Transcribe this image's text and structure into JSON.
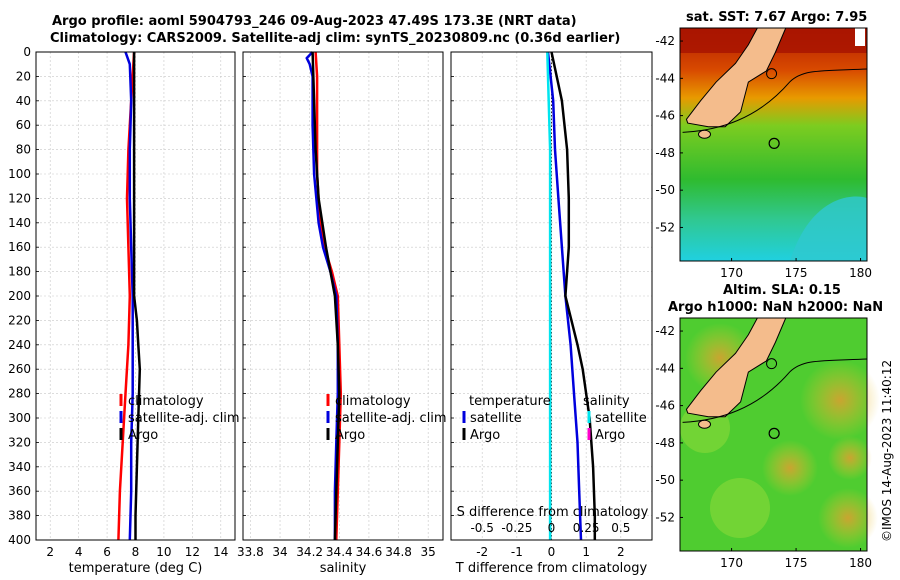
{
  "title": {
    "line1": "Argo profile: aoml 5904793_246 09-Aug-2023 47.49S 173.3E (NRT data)",
    "line2": "Climatology: CARS2009. Satellite-adj clim: synTS_20230809.nc (0.36d earlier)"
  },
  "map_top_title": "sat. SST: 7.67 Argo: 7.95",
  "map_bottom_title_1": "Altim. SLA: 0.15",
  "map_bottom_title_2": "Argo h1000: NaN h2000: NaN",
  "watermark": "©IMOS 14-Aug-2023 11:40:12",
  "colors": {
    "climatology": "#ff0000",
    "satellite": "#0000dd",
    "argo": "#000000",
    "tdiff_sat": "#0000dd",
    "sdiff_sat": "#00e5ee",
    "sdiff_argo": "#ff00cc"
  },
  "chart_data": [
    {
      "type": "line",
      "name": "temperature-panel",
      "xlabel": "temperature (deg C)",
      "ylabel": "",
      "xlim": [
        1,
        15
      ],
      "ylim": [
        400,
        0
      ],
      "xticks": [
        2,
        4,
        6,
        8,
        10,
        12,
        14
      ],
      "yticks": [
        0,
        20,
        40,
        60,
        80,
        100,
        120,
        140,
        160,
        180,
        200,
        220,
        240,
        260,
        280,
        300,
        320,
        340,
        360,
        380,
        400
      ],
      "legend": [
        "climatology",
        "satellite-adj. clim",
        "Argo"
      ],
      "series": [
        {
          "name": "climatology",
          "depth": [
            0,
            40,
            80,
            120,
            160,
            200,
            240,
            280,
            320,
            360,
            400
          ],
          "values": [
            7.9,
            7.7,
            7.5,
            7.4,
            7.5,
            7.6,
            7.5,
            7.3,
            7.1,
            6.9,
            6.8
          ]
        },
        {
          "name": "satellite-adj. clim",
          "depth": [
            0,
            10,
            40,
            80,
            120,
            160,
            200,
            240,
            280,
            320,
            360,
            400
          ],
          "values": [
            7.3,
            7.6,
            7.7,
            7.6,
            7.6,
            7.7,
            7.8,
            7.8,
            7.8,
            7.7,
            7.7,
            7.6
          ]
        },
        {
          "name": "Argo",
          "depth": [
            0,
            40,
            80,
            120,
            160,
            200,
            220,
            240,
            260,
            300,
            340,
            380,
            400
          ],
          "values": [
            7.9,
            7.9,
            7.9,
            7.9,
            7.9,
            7.9,
            8.1,
            8.2,
            8.3,
            8.2,
            8.1,
            8.0,
            8.0
          ]
        }
      ]
    },
    {
      "type": "line",
      "name": "salinity-panel",
      "xlabel": "salinity",
      "xlim": [
        33.75,
        35.1
      ],
      "ylim": [
        400,
        0
      ],
      "xticks": [
        33.8,
        34,
        34.2,
        34.4,
        34.6,
        34.8,
        35
      ],
      "legend": [
        "climatology",
        "satellite-adj. clim",
        "Argo"
      ],
      "series": [
        {
          "name": "climatology",
          "depth": [
            0,
            20,
            60,
            100,
            140,
            160,
            180,
            200,
            240,
            280,
            320,
            360,
            400
          ],
          "values": [
            34.24,
            34.25,
            34.25,
            34.25,
            34.27,
            34.3,
            34.35,
            34.39,
            34.4,
            34.41,
            34.4,
            34.39,
            34.38
          ]
        },
        {
          "name": "satellite-adj. clim",
          "depth": [
            0,
            5,
            10,
            20,
            60,
            100,
            140,
            160,
            180,
            200,
            240,
            280,
            320,
            360,
            400
          ],
          "values": [
            34.22,
            34.18,
            34.2,
            34.22,
            34.22,
            34.23,
            34.26,
            34.29,
            34.34,
            34.38,
            34.39,
            34.39,
            34.38,
            34.37,
            34.37
          ]
        },
        {
          "name": "Argo",
          "depth": [
            0,
            40,
            80,
            120,
            160,
            200,
            240,
            280,
            320,
            360,
            400
          ],
          "values": [
            34.22,
            34.23,
            34.24,
            34.26,
            34.31,
            34.37,
            34.39,
            34.4,
            34.39,
            34.38,
            34.37
          ]
        }
      ]
    },
    {
      "type": "line",
      "name": "difference-panel",
      "xlabel": "T difference from climatology",
      "top_xlabel": "S difference from climatology",
      "xlim": [
        -2.9,
        2.9
      ],
      "ylim": [
        400,
        0
      ],
      "xticks": [
        -2,
        -1,
        0,
        1,
        2
      ],
      "top_xticks": [
        -0.5,
        -0.25,
        0,
        0.25,
        0.5
      ],
      "legend_left_title": "temperature",
      "legend_right_title": "salinity",
      "legend": [
        "satellite",
        "Argo"
      ],
      "series": [
        {
          "name": "T satellite",
          "depth": [
            0,
            40,
            80,
            120,
            160,
            200,
            240,
            280,
            320,
            360,
            400
          ],
          "values": [
            -0.1,
            0.05,
            0.1,
            0.2,
            0.3,
            0.4,
            0.55,
            0.65,
            0.75,
            0.8,
            0.85
          ]
        },
        {
          "name": "T Argo",
          "depth": [
            0,
            40,
            80,
            120,
            160,
            200,
            240,
            260,
            300,
            340,
            380,
            400
          ],
          "values": [
            0.0,
            0.3,
            0.45,
            0.5,
            0.5,
            0.4,
            0.75,
            0.9,
            1.1,
            1.2,
            1.25,
            1.25
          ]
        },
        {
          "name": "S satellite",
          "depth": [
            0,
            40,
            80,
            120,
            160,
            200,
            240,
            280,
            320,
            360,
            400
          ],
          "values": [
            -0.03,
            -0.02,
            -0.01,
            -0.01,
            -0.01,
            -0.01,
            -0.01,
            -0.01,
            -0.01,
            -0.01,
            -0.01
          ]
        }
      ]
    },
    {
      "type": "heatmap",
      "name": "sst-map",
      "title": "sat. SST: 7.67 Argo: 7.95",
      "xticks": [
        170,
        175,
        180
      ],
      "yticks": [
        -42,
        -44,
        -46,
        -48,
        -50,
        -52
      ],
      "xlim": [
        166,
        180.5
      ],
      "ylim": [
        -53.8,
        -41.3
      ]
    },
    {
      "type": "heatmap",
      "name": "sla-map",
      "title": "Altim. SLA: 0.15",
      "xticks": [
        170,
        175,
        180
      ],
      "yticks": [
        -42,
        -44,
        -46,
        -48,
        -50,
        -52
      ],
      "xlim": [
        166,
        180.5
      ],
      "ylim": [
        -53.8,
        -41.3
      ]
    }
  ]
}
